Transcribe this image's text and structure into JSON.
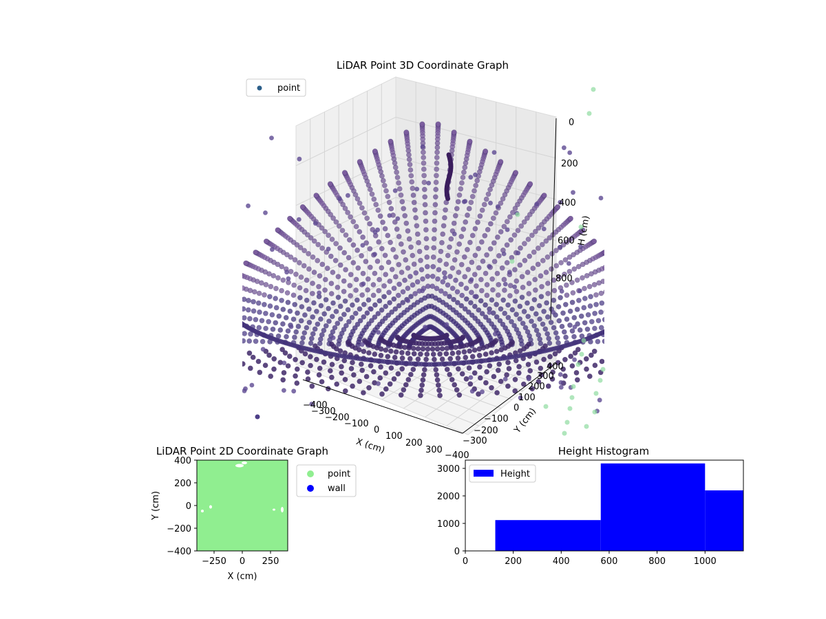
{
  "chart_data": [
    {
      "type": "scatter",
      "title": "LiDAR Point 3D Coordinate Graph",
      "xlabel": "X (cm)",
      "ylabel": "Y (cm)",
      "zlabel": "H (cm)",
      "x_ticks": [
        "−400",
        "−300",
        "−200",
        "−100",
        "0",
        "100",
        "200",
        "300"
      ],
      "y_ticks": [
        "−400",
        "−300",
        "−200",
        "−100",
        "0",
        "100",
        "200",
        "300",
        "400"
      ],
      "z_ticks": [
        "0",
        "200",
        "400",
        "600",
        "800"
      ],
      "xlim": [
        -400,
        400
      ],
      "ylim": [
        -400,
        400
      ],
      "zlim": [
        0,
        1000
      ],
      "z_inverted": true,
      "legend": [
        {
          "label": "point",
          "color": "#2c5f8a"
        }
      ],
      "legend_position": "top-left",
      "colormap": "viridis",
      "grid": true
    },
    {
      "type": "scatter",
      "title": "LiDAR Point 2D Coordinate Graph",
      "xlabel": "X (cm)",
      "ylabel": "Y (cm)",
      "x_ticks": [
        "−250",
        "0",
        "250"
      ],
      "y_ticks": [
        "400",
        "200",
        "0",
        "−200",
        "−400"
      ],
      "xlim": [
        -400,
        400
      ],
      "ylim": [
        -400,
        400
      ],
      "series": [
        {
          "name": "point",
          "color": "#90ee90"
        },
        {
          "name": "wall",
          "color": "#0000ff"
        }
      ],
      "legend_position": "outside-right"
    },
    {
      "type": "bar",
      "title": "Height Histogram",
      "series": [
        {
          "name": "Height",
          "color": "#0000ff"
        }
      ],
      "bins": [
        {
          "x0": 0,
          "x1": 125,
          "value": 0
        },
        {
          "x0": 125,
          "x1": 565,
          "value": 1120
        },
        {
          "x0": 565,
          "x1": 1000,
          "value": 3180
        },
        {
          "x0": 1000,
          "x1": 1160,
          "value": 2200
        }
      ],
      "x_ticks": [
        "0",
        "200",
        "400",
        "600",
        "800",
        "1000"
      ],
      "y_ticks": [
        "0",
        "1000",
        "2000",
        "3000"
      ],
      "xlim": [
        0,
        1160
      ],
      "ylim": [
        0,
        3300
      ],
      "legend_position": "top-left"
    }
  ]
}
